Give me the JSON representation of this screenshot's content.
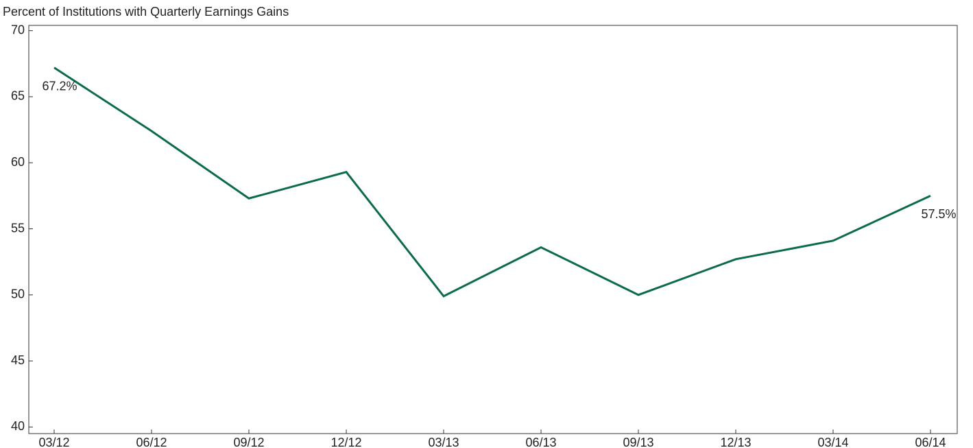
{
  "chart_data": {
    "type": "line",
    "title": "Percent of Institutions with Quarterly Earnings Gains",
    "categories": [
      "03/12",
      "06/12",
      "09/12",
      "12/12",
      "03/13",
      "06/13",
      "09/13",
      "12/13",
      "03/14",
      "06/14"
    ],
    "series": [
      {
        "name": null,
        "color": "#0b6b4a",
        "values": [
          67.2,
          62.4,
          57.3,
          59.3,
          49.9,
          53.6,
          50.0,
          52.7,
          54.1,
          57.5
        ],
        "value_labels": [
          "67.2%",
          null,
          null,
          null,
          null,
          null,
          null,
          null,
          null,
          "57.5%"
        ]
      }
    ],
    "ylim": [
      39.5,
      70.4
    ],
    "yticks": [
      40,
      45,
      50,
      55,
      60,
      65,
      70
    ],
    "grid": false
  }
}
